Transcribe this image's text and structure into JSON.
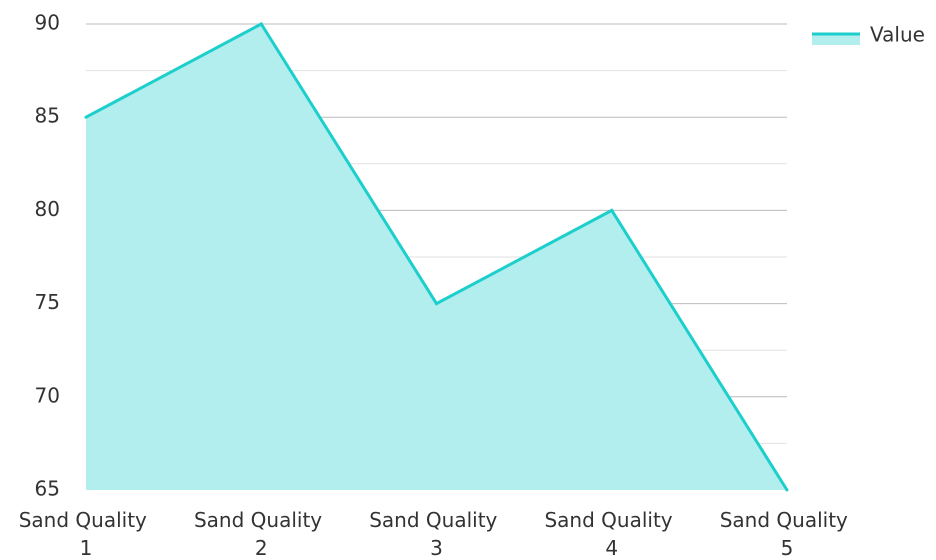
{
  "chart_data": {
    "type": "area",
    "categories": [
      [
        "Sand Quality",
        "1"
      ],
      [
        "Sand Quality",
        "2"
      ],
      [
        "Sand Quality",
        "3"
      ],
      [
        "Sand Quality",
        "4"
      ],
      [
        "Sand Quality",
        "5"
      ]
    ],
    "series": [
      {
        "name": "Value",
        "values": [
          85,
          90,
          75,
          80,
          65
        ]
      }
    ],
    "y_ticks": [
      "90",
      "85",
      "80",
      "75",
      "70",
      "65"
    ],
    "ylim": [
      65,
      90
    ],
    "grid": true,
    "legend": "top-right",
    "colors": {
      "line": "#1ccfcc",
      "fill": "#b2eeee",
      "major_grid": "#bbbbbb",
      "minor_grid": "#e2e2e2"
    }
  }
}
